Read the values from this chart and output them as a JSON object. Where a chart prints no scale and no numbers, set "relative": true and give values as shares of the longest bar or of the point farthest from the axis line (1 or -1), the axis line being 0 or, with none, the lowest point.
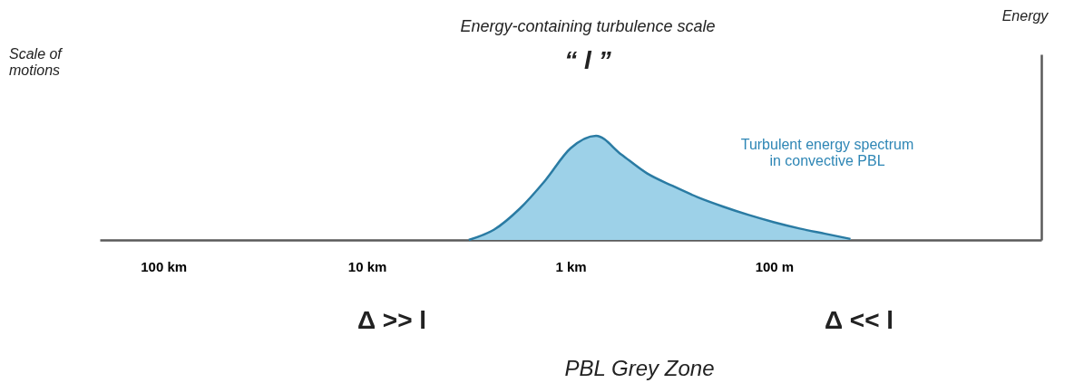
{
  "chart_data": {
    "type": "area",
    "relative": true,
    "xlabel": "Scale of\nmotions",
    "categories": [
      null,
      null,
      "100 km",
      null,
      null,
      null,
      null,
      null,
      null,
      null,
      "10 km",
      null,
      null,
      null,
      null,
      null,
      null,
      null,
      "1 km",
      null,
      null,
      null,
      null,
      null,
      null,
      null,
      "100 m",
      null,
      null,
      null,
      null,
      null,
      null,
      null,
      null,
      null,
      null
    ],
    "series": [
      {
        "color": "#9dd1e8",
        "values": [
          null,
          null,
          null,
          null,
          null,
          null,
          null,
          null,
          null,
          null,
          null,
          null,
          null,
          null,
          0,
          0.1,
          0.3,
          0.57,
          0.88,
          1,
          0.82,
          0.64,
          0.52,
          0.41,
          0.32,
          0.24,
          0.17,
          0.11,
          0.06,
          0.01,
          null,
          null,
          null,
          null,
          null,
          null,
          null
        ]
      }
    ],
    "grid": false,
    "annotations": [
      "Energy-containing turbulence scale",
      "“ l ”",
      "Turbulent energy spectrum\nin convective PBL",
      "Δ >> l",
      "Δ << l",
      "PBL Grey Zone",
      "Energy"
    ]
  }
}
